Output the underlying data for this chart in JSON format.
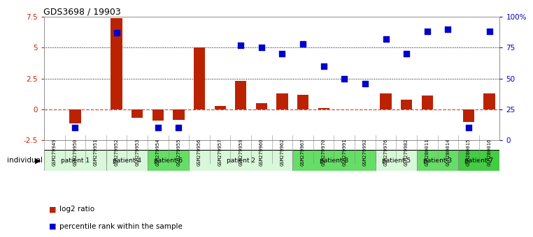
{
  "title": "GDS3698 / 19903",
  "samples": [
    "GSM279949",
    "GSM279950",
    "GSM279951",
    "GSM279952",
    "GSM279953",
    "GSM279954",
    "GSM279955",
    "GSM279956",
    "GSM279957",
    "GSM279959",
    "GSM279960",
    "GSM279962",
    "GSM279967",
    "GSM279970",
    "GSM279991",
    "GSM279992",
    "GSM279976",
    "GSM279982",
    "GSM280011",
    "GSM280014",
    "GSM280015",
    "GSM280016"
  ],
  "log2_ratio": [
    0.0,
    -1.15,
    0.0,
    7.4,
    -0.7,
    -0.9,
    -0.85,
    5.0,
    0.3,
    2.3,
    0.5,
    1.3,
    1.2,
    0.12,
    0.0,
    0.0,
    1.3,
    0.8,
    1.1,
    0.0,
    -1.0,
    1.3
  ],
  "percentile": [
    null,
    10,
    null,
    87,
    null,
    10,
    10,
    null,
    null,
    77,
    75,
    70,
    78,
    60,
    50,
    46,
    82,
    70,
    88,
    90,
    10,
    88
  ],
  "patients": [
    {
      "name": "patient 1",
      "start": 0,
      "end": 3,
      "color": "#d9f7d9"
    },
    {
      "name": "patient 4",
      "start": 3,
      "end": 5,
      "color": "#d9f7d9"
    },
    {
      "name": "patient 6",
      "start": 5,
      "end": 7,
      "color": "#66dd66"
    },
    {
      "name": "patient 2",
      "start": 7,
      "end": 12,
      "color": "#d9f7d9"
    },
    {
      "name": "patient 8",
      "start": 12,
      "end": 16,
      "color": "#66dd66"
    },
    {
      "name": "patient 5",
      "start": 16,
      "end": 18,
      "color": "#d9f7d9"
    },
    {
      "name": "patient 3",
      "start": 18,
      "end": 20,
      "color": "#66dd66"
    },
    {
      "name": "patient 7",
      "start": 20,
      "end": 22,
      "color": "#44cc44"
    }
  ],
  "ylim_left": [
    -2.5,
    7.5
  ],
  "ylim_right": [
    0,
    100
  ],
  "yticks_left": [
    -2.5,
    0.0,
    2.5,
    5.0,
    7.5
  ],
  "yticks_left_labels": [
    "-2.5",
    "0",
    "2.5",
    "5",
    "7.5"
  ],
  "yticks_right": [
    0,
    25,
    50,
    75,
    100
  ],
  "yticks_right_labels": [
    "0",
    "25",
    "50",
    "75",
    "100%"
  ],
  "bar_color": "#bb2200",
  "dot_color": "#0000cc",
  "dot_size": 40,
  "bar_width": 0.55,
  "chart_bg": "#ffffff",
  "xlabel_bg": "#cccccc",
  "label_log2": "log2 ratio",
  "label_pct": "percentile rank within the sample"
}
